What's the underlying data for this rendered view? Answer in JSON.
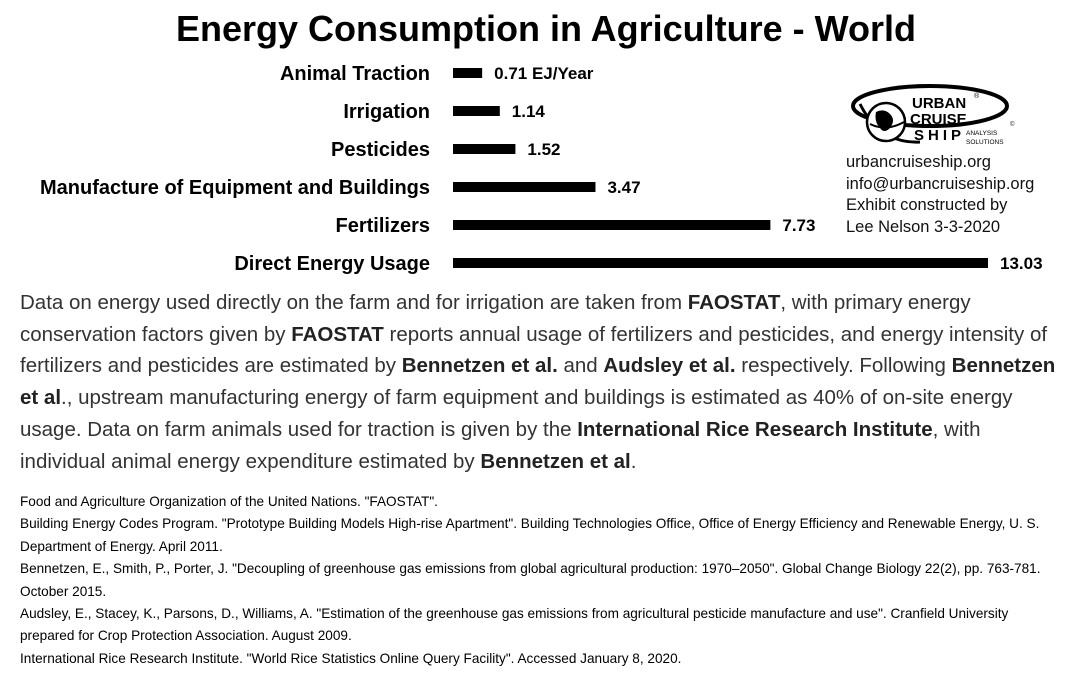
{
  "chart_data": {
    "type": "bar",
    "orientation": "horizontal",
    "title": "Energy Consumption in Agriculture - World",
    "categories": [
      "Animal Traction",
      "Irrigation",
      "Pesticides",
      "Manufacture of Equipment and Buildings",
      "Fertilizers",
      "Direct Energy Usage"
    ],
    "values": [
      0.71,
      1.14,
      1.52,
      3.47,
      7.73,
      13.03
    ],
    "value_labels": [
      "0.71 EJ/Year",
      "1.14",
      "1.52",
      "3.47",
      "7.73",
      "13.03"
    ],
    "xlim": [
      0,
      13.03
    ],
    "bar_color": "#000000",
    "grid": false,
    "legend": "none"
  },
  "brand": {
    "logo_lines": [
      "URBAN",
      "CRUISE",
      "SHIP"
    ],
    "logo_tagline": [
      "ANALYSIS",
      "SOLUTIONS"
    ],
    "logo_marks": [
      "®",
      "©"
    ],
    "website": "urbancruiseship.org",
    "email": "info@urbancruiseship.org",
    "credit_line1": "Exhibit constructed by",
    "credit_line2": "Lee Nelson 3-3-2020"
  },
  "description": [
    {
      "t": "Data on energy used directly on the farm and for irrigation are taken from ",
      "b": false
    },
    {
      "t": "FAOSTAT",
      "b": true
    },
    {
      "t": ", with primary energy conservation factors given by ",
      "b": false
    },
    {
      "t": "FAOSTAT",
      "b": true
    },
    {
      "t": " reports annual usage of fertilizers and pesticides, and energy intensity of fertilizers and pesticides are estimated by ",
      "b": false
    },
    {
      "t": "Bennetzen et al.",
      "b": true
    },
    {
      "t": "  and ",
      "b": false
    },
    {
      "t": "Audsley et al.",
      "b": true
    },
    {
      "t": " respectively. Following ",
      "b": false
    },
    {
      "t": "Bennetzen et al",
      "b": true
    },
    {
      "t": "., upstream manufacturing energy of farm equipment and buildings is estimated as 40% of on-site energy usage. Data on farm animals used for traction is given by the ",
      "b": false
    },
    {
      "t": "International Rice Research Institute",
      "b": true
    },
    {
      "t": ", with individual animal energy expenditure estimated by ",
      "b": false
    },
    {
      "t": "Bennetzen et al",
      "b": true
    },
    {
      "t": ".",
      "b": false
    }
  ],
  "references": [
    "Food and Agriculture Organization of the United Nations. \"FAOSTAT\".",
    "Building Energy Codes Program. \"Prototype Building Models High-rise Apartment\". Building Technologies Office, Office of Energy Efficiency and Renewable Energy, U. S. Department of Energy. April 2011.",
    "Bennetzen, E., Smith, P., Porter, J. \"Decoupling of greenhouse gas emissions from global agricultural production: 1970–2050\". Global Change Biology 22(2), pp. 763-781. October 2015.",
    "Audsley, E., Stacey, K., Parsons, D., Williams, A. \"Estimation of the greenhouse gas emissions from agricultural pesticide manufacture and use\". Cranfield University prepared for Crop Protection Association. August 2009.",
    "International Rice Research Institute. \"World Rice Statistics Online Query Facility\". Accessed January 8, 2020."
  ]
}
